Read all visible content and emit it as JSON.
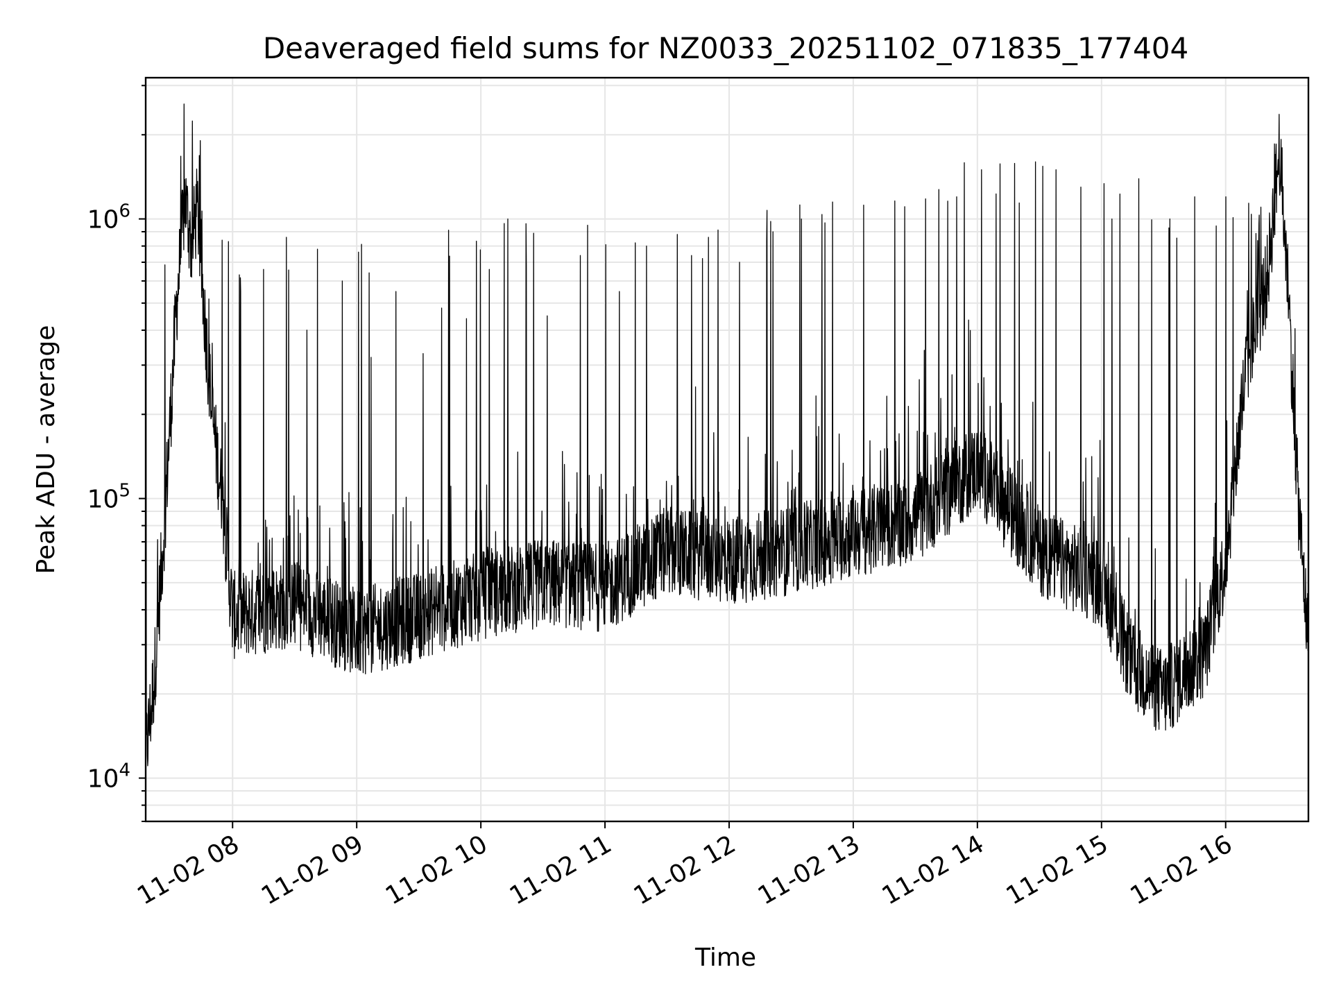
{
  "chart_data": {
    "type": "line",
    "title": "Deaveraged field sums for NZ0033_20251102_071835_177404",
    "xlabel": "Time",
    "ylabel": "Peak ADU - average",
    "yscale": "log",
    "ylim": [
      7000,
      3200000
    ],
    "xlim": [
      "2025-11-02 07:18",
      "2025-11-02 16:40"
    ],
    "x_ticks": [
      {
        "label": "11-02 08",
        "time": "2025-11-02 08:00"
      },
      {
        "label": "11-02 09",
        "time": "2025-11-02 09:00"
      },
      {
        "label": "11-02 10",
        "time": "2025-11-02 10:00"
      },
      {
        "label": "11-02 11",
        "time": "2025-11-02 11:00"
      },
      {
        "label": "11-02 12",
        "time": "2025-11-02 12:00"
      },
      {
        "label": "11-02 13",
        "time": "2025-11-02 13:00"
      },
      {
        "label": "11-02 14",
        "time": "2025-11-02 14:00"
      },
      {
        "label": "11-02 15",
        "time": "2025-11-02 15:00"
      },
      {
        "label": "11-02 16",
        "time": "2025-11-02 16:00"
      }
    ],
    "y_ticks": [
      {
        "label": "10",
        "exp": "4",
        "value": 10000
      },
      {
        "label": "10",
        "exp": "5",
        "value": 100000
      },
      {
        "label": "10",
        "exp": "6",
        "value": 1000000
      }
    ],
    "grid": true,
    "line_color": "#000000",
    "series": [
      {
        "values": [
          {
            "x": "2025-11-02 07:18",
            "y": 12000
          },
          {
            "x": "2025-11-02 07:22",
            "y": 22000
          },
          {
            "x": "2025-11-02 07:27",
            "y": 80000
          },
          {
            "x": "2025-11-02 07:33",
            "y": 500000
          },
          {
            "x": "2025-11-02 07:37",
            "y": 1200000
          },
          {
            "x": "2025-11-02 07:40",
            "y": 800000
          },
          {
            "x": "2025-11-02 07:43",
            "y": 1100000
          },
          {
            "x": "2025-11-02 07:46",
            "y": 500000
          },
          {
            "x": "2025-11-02 07:50",
            "y": 200000
          },
          {
            "x": "2025-11-02 07:55",
            "y": 100000
          },
          {
            "x": "2025-11-02 08:00",
            "y": 38000
          },
          {
            "x": "2025-11-02 08:30",
            "y": 42000
          },
          {
            "x": "2025-11-02 09:00",
            "y": 33000
          },
          {
            "x": "2025-11-02 09:30",
            "y": 38000
          },
          {
            "x": "2025-11-02 10:00",
            "y": 45000
          },
          {
            "x": "2025-11-02 10:30",
            "y": 50000
          },
          {
            "x": "2025-11-02 11:00",
            "y": 48000
          },
          {
            "x": "2025-11-02 11:30",
            "y": 65000
          },
          {
            "x": "2025-11-02 12:00",
            "y": 60000
          },
          {
            "x": "2025-11-02 12:30",
            "y": 65000
          },
          {
            "x": "2025-11-02 13:00",
            "y": 75000
          },
          {
            "x": "2025-11-02 13:30",
            "y": 85000
          },
          {
            "x": "2025-11-02 14:00",
            "y": 130000
          },
          {
            "x": "2025-11-02 14:30",
            "y": 65000
          },
          {
            "x": "2025-11-02 15:00",
            "y": 50000
          },
          {
            "x": "2025-11-02 15:15",
            "y": 25000
          },
          {
            "x": "2025-11-02 15:30",
            "y": 20000
          },
          {
            "x": "2025-11-02 15:50",
            "y": 28000
          },
          {
            "x": "2025-11-02 16:00",
            "y": 60000
          },
          {
            "x": "2025-11-02 16:10",
            "y": 300000
          },
          {
            "x": "2025-11-02 16:20",
            "y": 600000
          },
          {
            "x": "2025-11-02 16:26",
            "y": 1800000
          },
          {
            "x": "2025-11-02 16:30",
            "y": 600000
          },
          {
            "x": "2025-11-02 16:35",
            "y": 100000
          },
          {
            "x": "2025-11-02 16:40",
            "y": 30000
          }
        ],
        "spikes": [
          {
            "x": "2025-11-02 07:55",
            "y": 840000
          },
          {
            "x": "2025-11-02 07:58",
            "y": 830000
          },
          {
            "x": "2025-11-02 08:04",
            "y": 550000
          },
          {
            "x": "2025-11-02 08:15",
            "y": 660000
          },
          {
            "x": "2025-11-02 08:26",
            "y": 860000
          },
          {
            "x": "2025-11-02 08:36",
            "y": 400000
          },
          {
            "x": "2025-11-02 08:41",
            "y": 780000
          },
          {
            "x": "2025-11-02 08:53",
            "y": 600000
          },
          {
            "x": "2025-11-02 09:07",
            "y": 320000
          },
          {
            "x": "2025-11-02 09:19",
            "y": 550000
          },
          {
            "x": "2025-11-02 09:32",
            "y": 330000
          },
          {
            "x": "2025-11-02 09:41",
            "y": 480000
          },
          {
            "x": "2025-11-02 09:53",
            "y": 440000
          },
          {
            "x": "2025-11-02 10:04",
            "y": 660000
          },
          {
            "x": "2025-11-02 10:13",
            "y": 1000000
          },
          {
            "x": "2025-11-02 10:22",
            "y": 680000
          },
          {
            "x": "2025-11-02 10:32",
            "y": 450000
          },
          {
            "x": "2025-11-02 10:48",
            "y": 740000
          },
          {
            "x": "2025-11-02 11:07",
            "y": 550000
          },
          {
            "x": "2025-11-02 11:20",
            "y": 800000
          },
          {
            "x": "2025-11-02 11:35",
            "y": 880000
          },
          {
            "x": "2025-11-02 11:50",
            "y": 860000
          },
          {
            "x": "2025-11-02 12:05",
            "y": 700000
          },
          {
            "x": "2025-11-02 12:20",
            "y": 980000
          },
          {
            "x": "2025-11-02 12:35",
            "y": 1000000
          },
          {
            "x": "2025-11-02 12:50",
            "y": 1150000
          },
          {
            "x": "2025-11-02 13:05",
            "y": 1120000
          },
          {
            "x": "2025-11-02 13:20",
            "y": 1160000
          },
          {
            "x": "2025-11-02 13:35",
            "y": 1180000
          },
          {
            "x": "2025-11-02 13:50",
            "y": 1200000
          },
          {
            "x": "2025-11-02 14:02",
            "y": 1500000
          },
          {
            "x": "2025-11-02 14:18",
            "y": 1580000
          },
          {
            "x": "2025-11-02 14:28",
            "y": 1600000
          },
          {
            "x": "2025-11-02 14:38",
            "y": 1500000
          },
          {
            "x": "2025-11-02 14:50",
            "y": 1300000
          },
          {
            "x": "2025-11-02 15:05",
            "y": 1000000
          },
          {
            "x": "2025-11-02 15:18",
            "y": 900000
          },
          {
            "x": "2025-11-02 15:33",
            "y": 1000000
          },
          {
            "x": "2025-11-02 15:45",
            "y": 1200000
          },
          {
            "x": "2025-11-02 16:00",
            "y": 1200000
          }
        ]
      }
    ]
  }
}
